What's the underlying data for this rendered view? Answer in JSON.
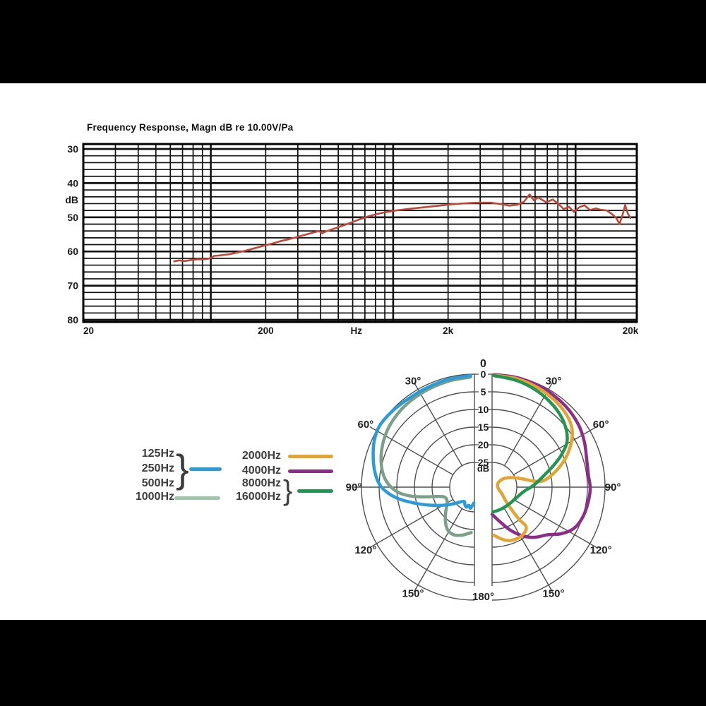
{
  "canvas": {
    "background": "#000000",
    "content_background": "#ffffff",
    "grid_color": "#111111",
    "polar_grid_color": "#4f4f4f",
    "text_color": "#1a1a1a"
  },
  "chart_data": [
    {
      "type": "line",
      "title": "Frequency Response, Magn dB re 10.00V/Pa",
      "x_axis": {
        "scale": "log",
        "min": 20,
        "max": 20000,
        "tick_labels": [
          {
            "label": "20",
            "freq": 20,
            "anchor": "start"
          },
          {
            "label": "200",
            "freq": 200,
            "anchor": "middle"
          },
          {
            "label": "Hz",
            "freq": 628,
            "anchor": "middle"
          },
          {
            "label": "2k",
            "freq": 2000,
            "anchor": "middle"
          },
          {
            "label": "20k",
            "freq": 20000,
            "anchor": "middle"
          }
        ]
      },
      "y_axis": {
        "unit": "dB",
        "min": 30,
        "max": 80,
        "inverted": true,
        "major_step": 10,
        "minor_step": 2,
        "tick_labels": [
          "30",
          "40",
          "50",
          "60",
          "70",
          "80"
        ]
      },
      "series": [
        {
          "name": "frequency-response",
          "color": "#bf4836",
          "points": [
            [
              63,
              62.9
            ],
            [
              67,
              62.6
            ],
            [
              72,
              62.8
            ],
            [
              78,
              62.5
            ],
            [
              84,
              62.3
            ],
            [
              91,
              62.3
            ],
            [
              97,
              62.1
            ],
            [
              101,
              61.8
            ],
            [
              104,
              61.3
            ],
            [
              110,
              61.2
            ],
            [
              118,
              61.0
            ],
            [
              127,
              60.8
            ],
            [
              137,
              60.4
            ],
            [
              149,
              60.0
            ],
            [
              162,
              59.5
            ],
            [
              178,
              58.9
            ],
            [
              196,
              58.3
            ],
            [
              216,
              57.7
            ],
            [
              240,
              57.0
            ],
            [
              268,
              56.4
            ],
            [
              300,
              55.7
            ],
            [
              335,
              55.0
            ],
            [
              368,
              54.4
            ],
            [
              392,
              54.0
            ],
            [
              408,
              54.7
            ],
            [
              425,
              54.2
            ],
            [
              445,
              53.8
            ],
            [
              470,
              53.4
            ],
            [
              505,
              52.8
            ],
            [
              545,
              52.2
            ],
            [
              590,
              51.5
            ],
            [
              640,
              50.8
            ],
            [
              695,
              50.1
            ],
            [
              755,
              49.5
            ],
            [
              820,
              49.0
            ],
            [
              890,
              48.6
            ],
            [
              960,
              48.3
            ],
            [
              1040,
              48.0
            ],
            [
              1150,
              47.7
            ],
            [
              1290,
              47.4
            ],
            [
              1450,
              47.1
            ],
            [
              1640,
              46.8
            ],
            [
              1850,
              46.5
            ],
            [
              2080,
              46.2
            ],
            [
              2350,
              46.0
            ],
            [
              2650,
              45.8
            ],
            [
              3000,
              45.7
            ],
            [
              3400,
              45.7
            ],
            [
              3850,
              46.1
            ],
            [
              4350,
              46.6
            ],
            [
              4800,
              46.3
            ],
            [
              5200,
              45.5
            ],
            [
              5600,
              43.3
            ],
            [
              5900,
              45.0
            ],
            [
              6250,
              44.2
            ],
            [
              6900,
              45.6
            ],
            [
              7500,
              44.8
            ],
            [
              8100,
              46.2
            ],
            [
              8600,
              47.6
            ],
            [
              9200,
              46.9
            ],
            [
              9800,
              48.4
            ],
            [
              10500,
              47.0
            ],
            [
              11200,
              46.5
            ],
            [
              12000,
              47.9
            ],
            [
              12900,
              47.4
            ],
            [
              13800,
              47.8
            ],
            [
              14800,
              48.0
            ],
            [
              15800,
              49.0
            ],
            [
              16800,
              50.3
            ],
            [
              17400,
              52.0
            ],
            [
              18100,
              49.3
            ],
            [
              18700,
              46.4
            ],
            [
              19300,
              48.8
            ],
            [
              20000,
              50.2
            ]
          ]
        }
      ]
    },
    {
      "type": "polar",
      "unit_label": "dB",
      "radial_ticks": [
        0,
        5,
        10,
        15,
        20,
        25
      ],
      "angle_labels": {
        "top": "0",
        "bottom": "180°",
        "sides": [
          "30°",
          "60°",
          "90°",
          "120°",
          "150°"
        ]
      },
      "series": [
        {
          "name": "125-500Hz",
          "side": "left",
          "color": "#2b9cd8",
          "points": [
            [
              2,
              0.4
            ],
            [
              14,
              0.6
            ],
            [
              26,
              0.8
            ],
            [
              38,
              0.7
            ],
            [
              48,
              0.3
            ],
            [
              57,
              0
            ],
            [
              65,
              0.7
            ],
            [
              73,
              2
            ],
            [
              81,
              3.4
            ],
            [
              88,
              5
            ],
            [
              93,
              7
            ],
            [
              98,
              9.8
            ],
            [
              103,
              13.2
            ],
            [
              109,
              16.8
            ],
            [
              116,
              20.2
            ],
            [
              123,
              22.8
            ],
            [
              130,
              24.8
            ],
            [
              137,
              26.3
            ],
            [
              145,
              27
            ],
            [
              152,
              26.3
            ],
            [
              158,
              25.9
            ],
            [
              163,
              26.6
            ],
            [
              169,
              25.9
            ],
            [
              173,
              26.7
            ],
            [
              178,
              27.5
            ]
          ]
        },
        {
          "name": "1000Hz",
          "side": "left",
          "color": "#7ba08a",
          "points": [
            [
              2,
              0.8
            ],
            [
              14,
              1.1
            ],
            [
              27,
              1.4
            ],
            [
              40,
              1.7
            ],
            [
              52,
              2.2
            ],
            [
              62,
              3
            ],
            [
              72,
              4.2
            ],
            [
              81,
              5.7
            ],
            [
              88,
              7.6
            ],
            [
              94,
              10.4
            ],
            [
              98,
              13.8
            ],
            [
              101,
              17.5
            ],
            [
              104,
              21
            ],
            [
              108,
              23
            ],
            [
              115,
              23.4
            ],
            [
              123,
              22.7
            ],
            [
              132,
              21
            ],
            [
              141,
              19
            ],
            [
              149,
              17.6
            ],
            [
              157,
              17.3
            ],
            [
              165,
              17.9
            ],
            [
              171,
              18.6
            ],
            [
              176,
              19.1
            ]
          ]
        },
        {
          "name": "4000Hz",
          "side": "right",
          "color": "#8e2d87",
          "points": [
            [
              1,
              0.1
            ],
            [
              14,
              0.2
            ],
            [
              28,
              0.5
            ],
            [
              42,
              1
            ],
            [
              54,
              1.8
            ],
            [
              64,
              2.9
            ],
            [
              74,
              4.1
            ],
            [
              83,
              4.5
            ],
            [
              91,
              4.2
            ],
            [
              100,
              4.5
            ],
            [
              109,
              5
            ],
            [
              117,
              6.1
            ],
            [
              124,
              8.4
            ],
            [
              131,
              11.4
            ],
            [
              139,
              13.2
            ],
            [
              147,
              15.4
            ],
            [
              156,
              18.4
            ],
            [
              165,
              21.4
            ],
            [
              173,
              23.2
            ],
            [
              180,
              24.3
            ]
          ]
        },
        {
          "name": "2000Hz",
          "side": "right",
          "color": "#e3a433",
          "points": [
            [
              1,
              0.3
            ],
            [
              13,
              0.5
            ],
            [
              25,
              1
            ],
            [
              36,
              1.7
            ],
            [
              46,
              2.6
            ],
            [
              54,
              4
            ],
            [
              61,
              6.4
            ],
            [
              68,
              9.4
            ],
            [
              74,
              12.4
            ],
            [
              79,
              15
            ],
            [
              83,
              17.5
            ],
            [
              82,
              20
            ],
            [
              75,
              23
            ],
            [
              65,
              25.6
            ],
            [
              55,
              27.6
            ],
            [
              51,
              29
            ],
            [
              60,
              30.2
            ],
            [
              82,
              30.6
            ],
            [
              106,
              30.1
            ],
            [
              124,
              28.6
            ],
            [
              135,
              26.6
            ],
            [
              139,
              23.6
            ],
            [
              140,
              20
            ],
            [
              139,
              17.4
            ],
            [
              144,
              16.2
            ],
            [
              152,
              15.8
            ],
            [
              161,
              16
            ],
            [
              168,
              16.8
            ],
            [
              174,
              17.8
            ],
            [
              178,
              18.4
            ]
          ]
        },
        {
          "name": "8000-16000Hz",
          "side": "right",
          "color": "#219551",
          "points": [
            [
              1,
              0.4
            ],
            [
              13,
              1
            ],
            [
              25,
              1.9
            ],
            [
              37,
              3.1
            ],
            [
              48,
              4.6
            ],
            [
              58,
              6.9
            ],
            [
              65,
              10.3
            ],
            [
              71,
              13.8
            ],
            [
              77,
              16.8
            ],
            [
              84,
              19.2
            ],
            [
              90,
              21
            ],
            [
              96,
              22.6
            ],
            [
              103,
              23.6
            ],
            [
              111,
              24.3
            ],
            [
              119,
              24.8
            ],
            [
              130,
              25.1
            ],
            [
              142,
              25.3
            ],
            [
              154,
              25.3
            ],
            [
              165,
              25.2
            ],
            [
              173,
              25.1
            ],
            [
              178,
              25
            ]
          ]
        }
      ]
    }
  ],
  "legend": {
    "left": [
      {
        "labels": [
          "125Hz",
          "250Hz",
          "500Hz"
        ],
        "brace": "}",
        "swatch_color": "#2b9cd8"
      },
      {
        "labels": [
          "1000Hz"
        ],
        "brace": "",
        "swatch_color": "#9cc7ab"
      }
    ],
    "right": [
      {
        "labels": [
          "2000Hz"
        ],
        "brace": "",
        "swatch_color": "#e3a433"
      },
      {
        "labels": [
          "4000Hz"
        ],
        "brace": "",
        "swatch_color": "#8e2d87"
      },
      {
        "labels": [
          "8000Hz",
          "16000Hz"
        ],
        "brace": "}",
        "swatch_color": "#219551"
      }
    ]
  }
}
